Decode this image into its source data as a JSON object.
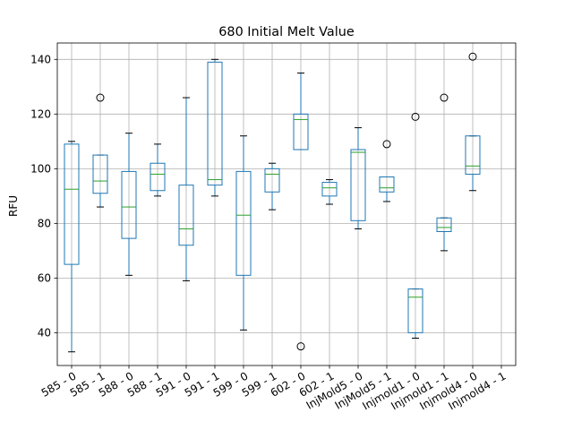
{
  "chart_data": {
    "type": "boxplot",
    "title": "680 Initial Melt Value",
    "xlabel": "",
    "ylabel": "RFU",
    "ylim": [
      28,
      146
    ],
    "yticks": [
      40,
      60,
      80,
      100,
      120,
      140
    ],
    "grid": true,
    "categories": [
      "585 - 0",
      "585 - 1",
      "588 - 0",
      "588 - 1",
      "591 - 0",
      "591 - 1",
      "599 - 0",
      "599 - 1",
      "602 - 0",
      "602 - 1",
      "InjMold5 - 0",
      "InjMold5 - 1",
      "Injmold1 - 0",
      "Injmold1 - 1",
      "Injmold4 - 0",
      "Injmold4 - 1"
    ],
    "boxes": [
      {
        "whisker_low": 33,
        "q1": 65,
        "median": 92.5,
        "q3": 109,
        "whisker_high": 110,
        "outliers": []
      },
      {
        "whisker_low": 86,
        "q1": 91,
        "median": 95.5,
        "q3": 105,
        "whisker_high": 105,
        "outliers": [
          126
        ]
      },
      {
        "whisker_low": 61,
        "q1": 74.5,
        "median": 86,
        "q3": 99,
        "whisker_high": 113,
        "outliers": []
      },
      {
        "whisker_low": 90,
        "q1": 92,
        "median": 98,
        "q3": 102,
        "whisker_high": 109,
        "outliers": []
      },
      {
        "whisker_low": 59,
        "q1": 72,
        "median": 78,
        "q3": 94,
        "whisker_high": 126,
        "outliers": []
      },
      {
        "whisker_low": 90,
        "q1": 94,
        "median": 96,
        "q3": 139,
        "whisker_high": 140,
        "outliers": []
      },
      {
        "whisker_low": 41,
        "q1": 61,
        "median": 83,
        "q3": 99,
        "whisker_high": 112,
        "outliers": []
      },
      {
        "whisker_low": 85,
        "q1": 91.5,
        "median": 98,
        "q3": 100,
        "whisker_high": 102,
        "outliers": []
      },
      {
        "whisker_low": 107,
        "q1": 107,
        "median": 118,
        "q3": 120,
        "whisker_high": 135,
        "outliers": [
          35
        ]
      },
      {
        "whisker_low": 87,
        "q1": 90,
        "median": 93,
        "q3": 95,
        "whisker_high": 96,
        "outliers": []
      },
      {
        "whisker_low": 78,
        "q1": 81,
        "median": 106,
        "q3": 107,
        "whisker_high": 115,
        "outliers": []
      },
      {
        "whisker_low": 88,
        "q1": 91.5,
        "median": 93,
        "q3": 97,
        "whisker_high": 97,
        "outliers": [
          109
        ]
      },
      {
        "whisker_low": 38,
        "q1": 40,
        "median": 53,
        "q3": 56,
        "whisker_high": 56,
        "outliers": [
          119
        ]
      },
      {
        "whisker_low": 70,
        "q1": 77,
        "median": 78.5,
        "q3": 82,
        "whisker_high": 82,
        "outliers": [
          126
        ]
      },
      {
        "whisker_low": 92,
        "q1": 98,
        "median": 101,
        "q3": 112,
        "whisker_high": 112,
        "outliers": [
          141
        ]
      },
      null
    ],
    "colors": {
      "box": "#1f77b4",
      "median": "#2ca02c",
      "grid": "#b0b0b0",
      "axes": "#000000",
      "outlier": "#000000"
    }
  }
}
